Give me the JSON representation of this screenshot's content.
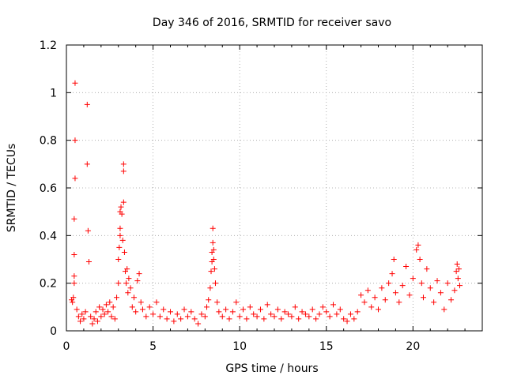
{
  "chart_data": {
    "type": "scatter",
    "title": "Day 346 of 2016, SRMTID for receiver savo",
    "xlabel": "GPS time / hours",
    "ylabel": "SRMTID / TECUs",
    "xlim": [
      0,
      24
    ],
    "ylim": [
      0,
      1.2
    ],
    "xticks": [
      0,
      5,
      10,
      15,
      20
    ],
    "xtick_labels": [
      "0",
      "5",
      "10",
      "15",
      "20"
    ],
    "yticks": [
      0,
      0.2,
      0.4,
      0.6,
      0.8,
      1,
      1.2
    ],
    "ytick_labels": [
      "0",
      "0.2",
      "0.4",
      "0.6",
      "0.8",
      "1",
      "1.2"
    ],
    "grid": true,
    "marker": "+",
    "color": "#ff0000",
    "series": [
      {
        "name": "SRMTID",
        "points": [
          [
            0.3,
            0.13
          ],
          [
            0.35,
            0.12
          ],
          [
            0.4,
            0.14
          ],
          [
            0.45,
            0.2
          ],
          [
            0.45,
            0.23
          ],
          [
            0.45,
            0.32
          ],
          [
            0.45,
            0.47
          ],
          [
            0.5,
            0.64
          ],
          [
            0.5,
            0.8
          ],
          [
            0.5,
            1.04
          ],
          [
            0.6,
            0.09
          ],
          [
            0.7,
            0.06
          ],
          [
            0.8,
            0.04
          ],
          [
            0.9,
            0.07
          ],
          [
            1.0,
            0.05
          ],
          [
            1.1,
            0.08
          ],
          [
            1.2,
            0.95
          ],
          [
            1.2,
            0.7
          ],
          [
            1.25,
            0.42
          ],
          [
            1.3,
            0.29
          ],
          [
            1.4,
            0.06
          ],
          [
            1.5,
            0.03
          ],
          [
            1.6,
            0.05
          ],
          [
            1.7,
            0.08
          ],
          [
            1.8,
            0.04
          ],
          [
            1.9,
            0.1
          ],
          [
            2.0,
            0.06
          ],
          [
            2.1,
            0.09
          ],
          [
            2.2,
            0.07
          ],
          [
            2.3,
            0.11
          ],
          [
            2.4,
            0.08
          ],
          [
            2.5,
            0.12
          ],
          [
            2.6,
            0.06
          ],
          [
            2.7,
            0.1
          ],
          [
            2.8,
            0.05
          ],
          [
            2.9,
            0.14
          ],
          [
            3.0,
            0.2
          ],
          [
            3.0,
            0.3
          ],
          [
            3.05,
            0.35
          ],
          [
            3.1,
            0.4
          ],
          [
            3.1,
            0.43
          ],
          [
            3.1,
            0.5
          ],
          [
            3.15,
            0.52
          ],
          [
            3.2,
            0.49
          ],
          [
            3.25,
            0.38
          ],
          [
            3.3,
            0.7
          ],
          [
            3.3,
            0.67
          ],
          [
            3.3,
            0.54
          ],
          [
            3.35,
            0.33
          ],
          [
            3.4,
            0.25
          ],
          [
            3.45,
            0.2
          ],
          [
            3.5,
            0.26
          ],
          [
            3.55,
            0.16
          ],
          [
            3.6,
            0.22
          ],
          [
            3.7,
            0.18
          ],
          [
            3.8,
            0.1
          ],
          [
            3.9,
            0.14
          ],
          [
            4.0,
            0.08
          ],
          [
            4.1,
            0.21
          ],
          [
            4.2,
            0.24
          ],
          [
            4.3,
            0.12
          ],
          [
            4.4,
            0.09
          ],
          [
            4.6,
            0.06
          ],
          [
            4.8,
            0.1
          ],
          [
            5.0,
            0.07
          ],
          [
            5.2,
            0.12
          ],
          [
            5.4,
            0.06
          ],
          [
            5.6,
            0.09
          ],
          [
            5.8,
            0.05
          ],
          [
            6.0,
            0.08
          ],
          [
            6.2,
            0.04
          ],
          [
            6.4,
            0.07
          ],
          [
            6.6,
            0.05
          ],
          [
            6.8,
            0.09
          ],
          [
            7.0,
            0.06
          ],
          [
            7.2,
            0.08
          ],
          [
            7.4,
            0.05
          ],
          [
            7.6,
            0.03
          ],
          [
            7.8,
            0.07
          ],
          [
            8.0,
            0.06
          ],
          [
            8.1,
            0.1
          ],
          [
            8.2,
            0.13
          ],
          [
            8.3,
            0.18
          ],
          [
            8.35,
            0.25
          ],
          [
            8.4,
            0.29
          ],
          [
            8.4,
            0.33
          ],
          [
            8.45,
            0.37
          ],
          [
            8.45,
            0.43
          ],
          [
            8.5,
            0.34
          ],
          [
            8.5,
            0.3
          ],
          [
            8.55,
            0.26
          ],
          [
            8.6,
            0.2
          ],
          [
            8.7,
            0.12
          ],
          [
            8.8,
            0.08
          ],
          [
            9.0,
            0.06
          ],
          [
            9.2,
            0.09
          ],
          [
            9.4,
            0.05
          ],
          [
            9.6,
            0.08
          ],
          [
            9.8,
            0.12
          ],
          [
            10.0,
            0.06
          ],
          [
            10.2,
            0.09
          ],
          [
            10.4,
            0.05
          ],
          [
            10.6,
            0.1
          ],
          [
            10.8,
            0.07
          ],
          [
            11.0,
            0.06
          ],
          [
            11.2,
            0.09
          ],
          [
            11.4,
            0.05
          ],
          [
            11.6,
            0.11
          ],
          [
            11.8,
            0.07
          ],
          [
            12.0,
            0.06
          ],
          [
            12.2,
            0.09
          ],
          [
            12.4,
            0.05
          ],
          [
            12.6,
            0.08
          ],
          [
            12.8,
            0.07
          ],
          [
            13.0,
            0.06
          ],
          [
            13.2,
            0.1
          ],
          [
            13.4,
            0.05
          ],
          [
            13.6,
            0.08
          ],
          [
            13.8,
            0.07
          ],
          [
            14.0,
            0.06
          ],
          [
            14.2,
            0.09
          ],
          [
            14.4,
            0.05
          ],
          [
            14.6,
            0.07
          ],
          [
            14.8,
            0.1
          ],
          [
            15.0,
            0.08
          ],
          [
            15.2,
            0.06
          ],
          [
            15.4,
            0.11
          ],
          [
            15.6,
            0.07
          ],
          [
            15.8,
            0.09
          ],
          [
            16.0,
            0.05
          ],
          [
            16.2,
            0.04
          ],
          [
            16.4,
            0.07
          ],
          [
            16.6,
            0.05
          ],
          [
            16.8,
            0.08
          ],
          [
            17.0,
            0.15
          ],
          [
            17.2,
            0.12
          ],
          [
            17.4,
            0.17
          ],
          [
            17.6,
            0.1
          ],
          [
            17.8,
            0.14
          ],
          [
            18.0,
            0.09
          ],
          [
            18.2,
            0.18
          ],
          [
            18.4,
            0.13
          ],
          [
            18.6,
            0.2
          ],
          [
            18.8,
            0.24
          ],
          [
            18.9,
            0.3
          ],
          [
            19.0,
            0.16
          ],
          [
            19.2,
            0.12
          ],
          [
            19.4,
            0.19
          ],
          [
            19.6,
            0.27
          ],
          [
            19.8,
            0.15
          ],
          [
            20.0,
            0.22
          ],
          [
            20.2,
            0.34
          ],
          [
            20.3,
            0.36
          ],
          [
            20.4,
            0.3
          ],
          [
            20.5,
            0.2
          ],
          [
            20.6,
            0.14
          ],
          [
            20.8,
            0.26
          ],
          [
            21.0,
            0.18
          ],
          [
            21.2,
            0.12
          ],
          [
            21.4,
            0.21
          ],
          [
            21.6,
            0.16
          ],
          [
            21.8,
            0.09
          ],
          [
            22.0,
            0.2
          ],
          [
            22.2,
            0.13
          ],
          [
            22.4,
            0.17
          ],
          [
            22.5,
            0.25
          ],
          [
            22.55,
            0.28
          ],
          [
            22.6,
            0.22
          ],
          [
            22.65,
            0.26
          ],
          [
            22.7,
            0.19
          ]
        ]
      }
    ]
  }
}
